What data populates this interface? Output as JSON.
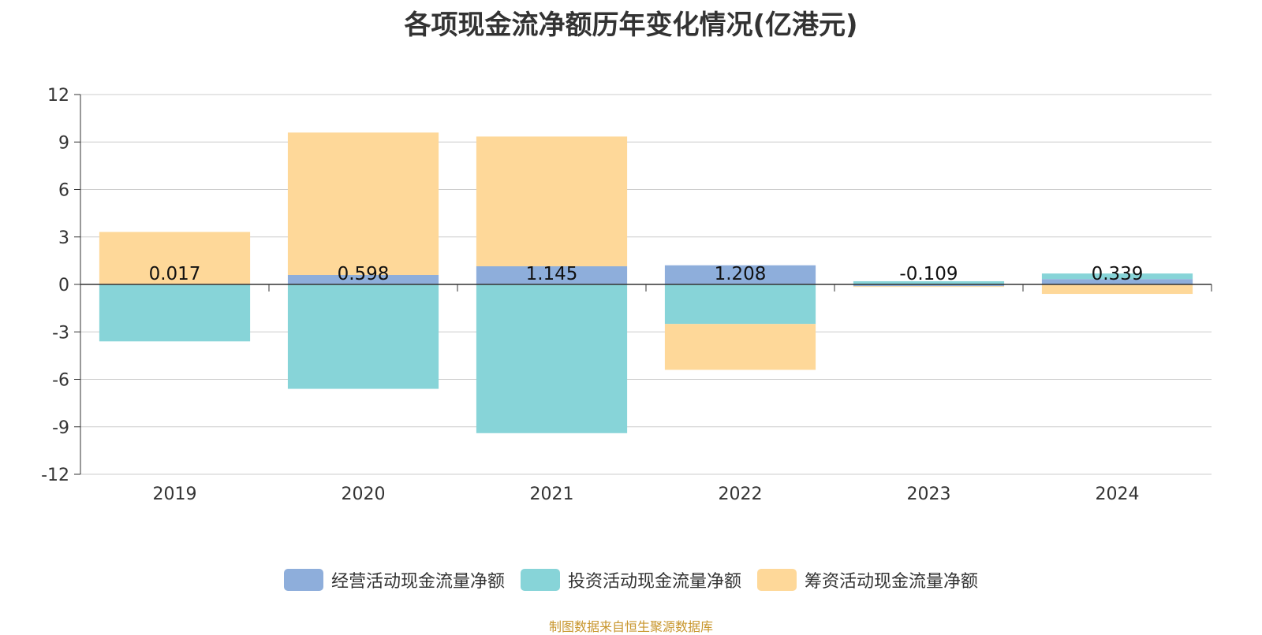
{
  "title": "各项现金流净额历年变化情况(亿港元)",
  "source": "制图数据来自恒生聚源数据库",
  "legend": [
    {
      "label": "经营活动现金流量净额",
      "color": "#8eaedb"
    },
    {
      "label": "投资活动现金流量净额",
      "color": "#87d4d8"
    },
    {
      "label": "筹资活动现金流量净额",
      "color": "#fed899"
    }
  ],
  "chart_data": {
    "type": "bar",
    "stacked": true,
    "categories": [
      "2019",
      "2020",
      "2021",
      "2022",
      "2023",
      "2024"
    ],
    "ylim": [
      -12,
      12
    ],
    "yticks": [
      12,
      9,
      6,
      3,
      0,
      -3,
      -6,
      -9,
      -12
    ],
    "grid": true,
    "legend_position": "bottom",
    "series": [
      {
        "name": "经营活动现金流量净额",
        "color": "#8eaedb",
        "values": [
          0.017,
          0.598,
          1.145,
          1.208,
          -0.109,
          0.339
        ],
        "labels": [
          "0.017",
          "0.598",
          "1.145",
          "1.208",
          "-0.109",
          "0.339"
        ]
      },
      {
        "name": "投资活动现金流量净额",
        "color": "#87d4d8",
        "values": [
          -3.6,
          -6.6,
          -9.4,
          -2.5,
          0.2,
          0.35
        ]
      },
      {
        "name": "筹资活动现金流量净额",
        "color": "#fed899",
        "values": [
          3.3,
          9.0,
          8.2,
          -2.9,
          -0.05,
          -0.6
        ]
      }
    ]
  }
}
